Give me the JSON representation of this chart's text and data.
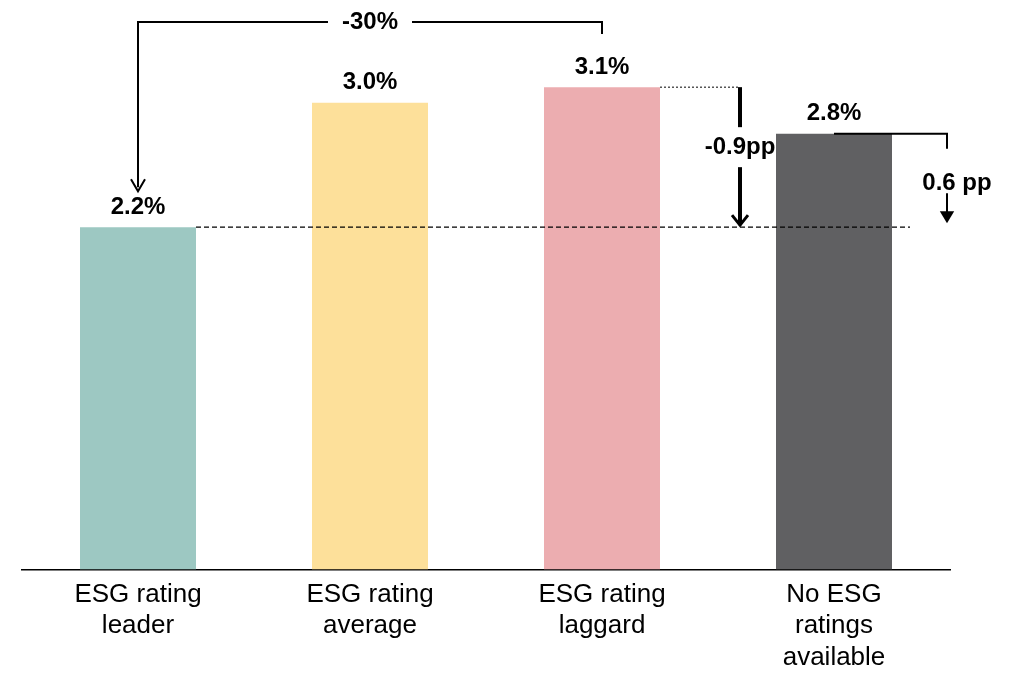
{
  "chart_data": {
    "type": "bar",
    "categories": [
      "ESG rating leader",
      "ESG rating average",
      "ESG rating laggard",
      "No ESG ratings available"
    ],
    "values": [
      2.2,
      3.0,
      3.1,
      2.8
    ],
    "colors": [
      "#9dc8c2",
      "#fde09a",
      "#ecadb0",
      "#606062"
    ],
    "value_labels": [
      "2.2%",
      "3.0%",
      "3.1%",
      "2.8%"
    ],
    "ref_lines": [
      {
        "axis": "y",
        "value": 2.2,
        "line_style": "dashed",
        "color": "#000000"
      }
    ],
    "annotations": [
      "-30%",
      "-0.9pp",
      "0.6 pp"
    ],
    "grid": false,
    "legend": false
  }
}
